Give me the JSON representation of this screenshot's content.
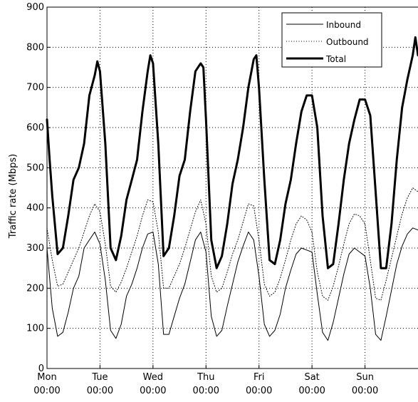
{
  "chart_data": {
    "type": "line",
    "ylabel": "Traffic rate (Mbps)",
    "ylim": [
      0,
      900
    ],
    "y_ticks": [
      "0",
      "100",
      "200",
      "300",
      "400",
      "500",
      "600",
      "700",
      "800",
      "900"
    ],
    "x_range": [
      0,
      7
    ],
    "x_ticks": [
      {
        "day": "Mon",
        "time": "00:00"
      },
      {
        "day": "Tue",
        "time": "00:00"
      },
      {
        "day": "Wed",
        "time": "00:00"
      },
      {
        "day": "Thu",
        "time": "00:00"
      },
      {
        "day": "Fri",
        "time": "00:00"
      },
      {
        "day": "Sat",
        "time": "00:00"
      },
      {
        "day": "Sun",
        "time": "00:00"
      }
    ],
    "grid": true,
    "legend_placement": "top-right",
    "series": [
      {
        "name": "Inbound",
        "style": "solid-thin",
        "x": [
          0.0,
          0.1,
          0.2,
          0.3,
          0.4,
          0.5,
          0.6,
          0.7,
          0.8,
          0.9,
          1.0,
          1.1,
          1.2,
          1.3,
          1.4,
          1.5,
          1.6,
          1.7,
          1.8,
          1.9,
          2.0,
          2.1,
          2.2,
          2.3,
          2.4,
          2.5,
          2.6,
          2.7,
          2.8,
          2.9,
          3.0,
          3.1,
          3.2,
          3.3,
          3.4,
          3.5,
          3.6,
          3.7,
          3.8,
          3.9,
          4.0,
          4.1,
          4.2,
          4.3,
          4.4,
          4.5,
          4.6,
          4.7,
          4.8,
          4.9,
          5.0,
          5.1,
          5.2,
          5.3,
          5.4,
          5.5,
          5.6,
          5.7,
          5.8,
          5.9,
          6.0,
          6.1,
          6.2,
          6.3,
          6.4,
          6.5,
          6.6,
          6.7,
          6.8,
          6.9,
          7.0
        ],
        "values": [
          300,
          150,
          80,
          90,
          140,
          200,
          230,
          300,
          320,
          340,
          310,
          220,
          95,
          75,
          110,
          180,
          210,
          250,
          300,
          335,
          340,
          260,
          85,
          85,
          130,
          175,
          210,
          265,
          320,
          340,
          290,
          130,
          80,
          95,
          155,
          210,
          265,
          305,
          340,
          320,
          230,
          110,
          80,
          95,
          135,
          200,
          245,
          285,
          300,
          295,
          290,
          185,
          90,
          70,
          115,
          175,
          235,
          285,
          300,
          290,
          280,
          200,
          85,
          70,
          130,
          195,
          260,
          305,
          335,
          350,
          345
        ]
      },
      {
        "name": "Outbound",
        "style": "dotted",
        "x": [
          0.0,
          0.1,
          0.2,
          0.3,
          0.4,
          0.5,
          0.6,
          0.7,
          0.8,
          0.9,
          1.0,
          1.1,
          1.2,
          1.3,
          1.4,
          1.5,
          1.6,
          1.7,
          1.8,
          1.9,
          2.0,
          2.1,
          2.2,
          2.3,
          2.4,
          2.5,
          2.6,
          2.7,
          2.8,
          2.9,
          3.0,
          3.1,
          3.2,
          3.3,
          3.4,
          3.5,
          3.6,
          3.7,
          3.8,
          3.9,
          4.0,
          4.1,
          4.2,
          4.3,
          4.4,
          4.5,
          4.6,
          4.7,
          4.8,
          4.9,
          5.0,
          5.1,
          5.2,
          5.3,
          5.4,
          5.5,
          5.6,
          5.7,
          5.8,
          5.9,
          6.0,
          6.1,
          6.2,
          6.3,
          6.4,
          6.5,
          6.6,
          6.7,
          6.8,
          6.9,
          7.0
        ],
        "values": [
          350,
          270,
          205,
          210,
          240,
          270,
          300,
          340,
          380,
          410,
          390,
          310,
          205,
          190,
          215,
          250,
          290,
          330,
          380,
          420,
          415,
          340,
          200,
          200,
          230,
          260,
          300,
          345,
          390,
          420,
          360,
          230,
          190,
          200,
          240,
          285,
          320,
          365,
          410,
          405,
          320,
          210,
          180,
          190,
          225,
          270,
          320,
          360,
          380,
          370,
          340,
          240,
          180,
          170,
          205,
          255,
          310,
          360,
          385,
          380,
          360,
          270,
          175,
          170,
          220,
          275,
          330,
          385,
          425,
          450,
          440
        ]
      },
      {
        "name": "Total",
        "style": "solid-thick",
        "x": [
          0.0,
          0.05,
          0.1,
          0.2,
          0.3,
          0.4,
          0.5,
          0.6,
          0.7,
          0.8,
          0.9,
          0.95,
          1.0,
          1.1,
          1.2,
          1.3,
          1.4,
          1.5,
          1.6,
          1.7,
          1.8,
          1.9,
          1.95,
          2.0,
          2.1,
          2.2,
          2.3,
          2.4,
          2.5,
          2.6,
          2.7,
          2.8,
          2.9,
          2.95,
          3.0,
          3.1,
          3.2,
          3.3,
          3.4,
          3.5,
          3.6,
          3.7,
          3.8,
          3.9,
          3.95,
          4.0,
          4.1,
          4.2,
          4.3,
          4.4,
          4.5,
          4.6,
          4.7,
          4.8,
          4.9,
          5.0,
          5.1,
          5.2,
          5.3,
          5.4,
          5.5,
          5.6,
          5.7,
          5.8,
          5.9,
          6.0,
          6.1,
          6.2,
          6.3,
          6.4,
          6.5,
          6.6,
          6.7,
          6.8,
          6.9,
          6.95,
          7.0
        ],
        "values": [
          620,
          520,
          430,
          285,
          300,
          380,
          470,
          500,
          560,
          680,
          730,
          765,
          740,
          560,
          300,
          270,
          330,
          420,
          470,
          520,
          640,
          740,
          780,
          760,
          560,
          280,
          300,
          380,
          480,
          520,
          640,
          740,
          760,
          750,
          620,
          320,
          250,
          280,
          360,
          460,
          520,
          600,
          700,
          770,
          780,
          700,
          470,
          270,
          260,
          320,
          410,
          470,
          560,
          640,
          680,
          680,
          600,
          380,
          250,
          260,
          360,
          470,
          560,
          620,
          670,
          670,
          630,
          440,
          250,
          250,
          360,
          520,
          650,
          720,
          780,
          825,
          780
        ]
      }
    ]
  }
}
